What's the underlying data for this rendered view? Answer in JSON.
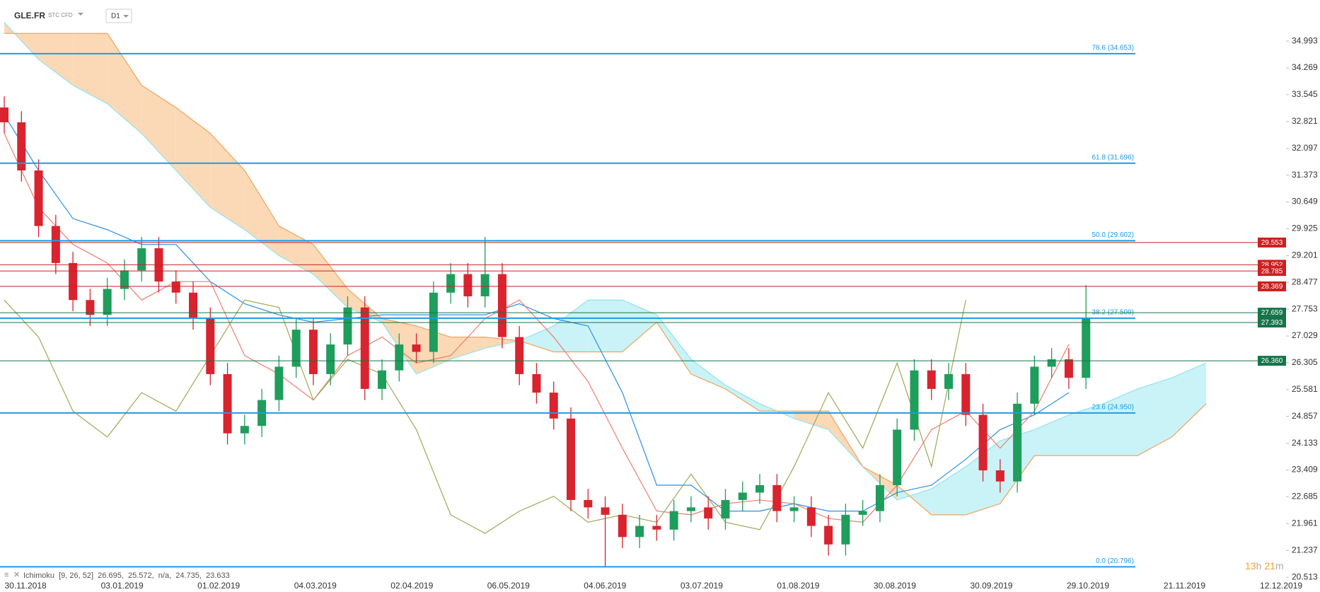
{
  "header": {
    "symbol": "GLE.FR",
    "instrument_type": "STC CFD",
    "timeframe": "D1"
  },
  "indicator_label": "Ichimoku  [9, 26, 52]  26.695,  25.572,  n/a,  24.735,  23.633",
  "countdown": {
    "hours": "13",
    "hours_unit": "h",
    "minutes": "21",
    "minutes_unit": "m"
  },
  "chart_data": {
    "type": "candlestick",
    "up_color": "#1f9d5c",
    "down_color": "#d9232e",
    "open": [
      33.2,
      32.8,
      31.5,
      30.0,
      29.0,
      28.0,
      27.6,
      28.3,
      28.8,
      29.4,
      28.5,
      28.2,
      27.5,
      26.0,
      24.4,
      24.6,
      25.3,
      26.2,
      27.2,
      26.0,
      26.8,
      27.8,
      25.6,
      26.1,
      26.8,
      26.6,
      28.2,
      28.7,
      28.1,
      28.7,
      27.0,
      26.0,
      25.5,
      24.8,
      22.6,
      22.4,
      22.2,
      21.6,
      21.9,
      21.8,
      22.3,
      22.4,
      22.1,
      22.6,
      22.8,
      23.0,
      22.3,
      22.4,
      21.9,
      21.4,
      22.2,
      22.3,
      23.0,
      24.5,
      26.1,
      25.6,
      26.0,
      24.9,
      23.4,
      23.1,
      25.2,
      26.2,
      26.4,
      25.9
    ],
    "high": [
      33.5,
      33.1,
      31.8,
      30.3,
      29.3,
      28.3,
      28.6,
      29.1,
      29.7,
      29.7,
      28.8,
      28.5,
      27.8,
      26.3,
      24.9,
      25.6,
      26.5,
      27.5,
      27.5,
      27.1,
      28.1,
      28.1,
      26.4,
      27.1,
      27.1,
      28.5,
      29.0,
      29.0,
      29.7,
      29.0,
      27.3,
      26.3,
      25.8,
      25.1,
      22.9,
      22.7,
      22.5,
      22.2,
      22.2,
      22.6,
      22.7,
      22.7,
      22.9,
      23.1,
      23.3,
      23.3,
      22.7,
      22.7,
      22.2,
      22.5,
      22.6,
      23.3,
      24.8,
      26.4,
      26.4,
      26.3,
      26.3,
      25.2,
      23.7,
      25.5,
      26.5,
      26.7,
      26.7,
      28.4
    ],
    "low": [
      32.5,
      31.2,
      29.7,
      28.7,
      27.7,
      27.3,
      27.3,
      28.0,
      28.5,
      28.2,
      27.9,
      27.2,
      25.7,
      24.1,
      24.1,
      24.3,
      25.0,
      25.9,
      25.7,
      25.7,
      26.5,
      25.3,
      25.3,
      25.8,
      26.3,
      26.3,
      27.9,
      27.8,
      27.8,
      26.7,
      25.7,
      25.2,
      24.5,
      22.3,
      22.1,
      20.8,
      21.3,
      21.3,
      21.5,
      21.5,
      22.0,
      21.8,
      21.8,
      22.3,
      22.5,
      22.0,
      22.0,
      21.6,
      21.1,
      21.1,
      21.9,
      22.0,
      22.7,
      24.2,
      25.3,
      25.3,
      24.6,
      23.1,
      22.8,
      22.8,
      24.9,
      25.9,
      25.6,
      25.6
    ],
    "close": [
      32.8,
      31.5,
      30.0,
      29.0,
      28.0,
      27.6,
      28.3,
      28.8,
      29.4,
      28.5,
      28.2,
      27.5,
      26.0,
      24.4,
      24.6,
      25.3,
      26.2,
      27.2,
      26.0,
      26.8,
      27.8,
      25.6,
      26.1,
      26.8,
      26.6,
      28.2,
      28.7,
      28.1,
      28.7,
      27.0,
      26.0,
      25.5,
      24.8,
      22.6,
      22.4,
      22.2,
      21.6,
      21.9,
      21.8,
      22.3,
      22.4,
      22.1,
      22.6,
      22.8,
      23.0,
      22.3,
      22.4,
      21.9,
      21.4,
      22.2,
      22.3,
      23.0,
      24.5,
      26.1,
      25.6,
      26.0,
      24.9,
      23.4,
      23.1,
      25.2,
      26.2,
      26.4,
      25.9,
      27.5
    ],
    "ichimoku": {
      "span_a": {
        "color": "#8fe3ee",
        "values": [
          35.5,
          34.5,
          33.8,
          33.3,
          32.5,
          31.5,
          30.5,
          29.9,
          29.2,
          28.7,
          27.8,
          27.4,
          26.0,
          26.4,
          26.7,
          26.9,
          27.3,
          28.0,
          28.0,
          27.6,
          26.4,
          25.7,
          25.2,
          24.8,
          24.5,
          23.5,
          22.6,
          22.9,
          23.5,
          24.2,
          24.5,
          24.9,
          25.2,
          25.6,
          25.9,
          26.3
        ]
      },
      "span_b": {
        "color": "#f2a35a",
        "values": [
          35.2,
          35.2,
          35.2,
          35.2,
          33.8,
          33.2,
          32.5,
          31.5,
          30.0,
          29.5,
          28.3,
          27.5,
          27.3,
          27.0,
          27.0,
          26.9,
          26.6,
          26.6,
          26.6,
          27.4,
          26.0,
          25.6,
          25.0,
          25.0,
          25.0,
          23.5,
          23.0,
          22.2,
          22.2,
          22.5,
          23.8,
          23.8,
          23.8,
          23.8,
          24.3,
          25.2
        ]
      },
      "kijun": {
        "color": "#2b8fe6",
        "values": [
          33.0,
          31.5,
          30.2,
          29.9,
          29.5,
          29.5,
          28.5,
          27.9,
          27.6,
          27.4,
          27.5,
          27.6,
          27.6,
          27.6,
          27.6,
          27.9,
          27.5,
          27.3,
          25.5,
          23.0,
          23.0,
          22.3,
          22.3,
          22.5,
          22.3,
          22.3,
          22.8,
          23.0,
          23.7,
          24.5,
          24.9,
          25.5,
          null,
          null,
          null,
          null
        ]
      },
      "tenkan": {
        "color": "#ef7b6b",
        "values": [
          32.5,
          30.5,
          29.5,
          29.0,
          28.0,
          28.5,
          28.5,
          26.5,
          26.0,
          25.3,
          26.5,
          27.0,
          26.3,
          26.5,
          27.5,
          28.0,
          27.0,
          25.8,
          24.0,
          22.3,
          22.2,
          22.5,
          22.6,
          22.5,
          22.1,
          22.0,
          23.0,
          24.5,
          25.0,
          24.0,
          25.0,
          26.8,
          null,
          null,
          null,
          null
        ]
      },
      "chikou": {
        "color": "#9aab55",
        "values": [
          28.0,
          27.0,
          25.0,
          24.3,
          25.5,
          25.0,
          26.5,
          28.0,
          27.8,
          25.3,
          26.4,
          26.0,
          24.5,
          22.2,
          21.7,
          22.3,
          22.7,
          22.0,
          22.2,
          22.0,
          23.3,
          22.0,
          21.8,
          23.5,
          25.5,
          24.0,
          26.3,
          23.5,
          28.0,
          null,
          null,
          null,
          null,
          null,
          null,
          null
        ]
      },
      "cloud_up_color": "#c9f3f7",
      "cloud_down_color": "#fbd9b6"
    },
    "fib_color": "#1e9be6",
    "fib_levels": [
      {
        "value": 34.653,
        "label": "78.6 (34.653)"
      },
      {
        "value": 31.696,
        "label": "61.8 (31.696)"
      },
      {
        "value": 29.602,
        "label": "50.0 (29.602)"
      },
      {
        "value": 27.509,
        "label": "38.2 (27.509)"
      },
      {
        "value": 24.95,
        "label": "23.6 (24.950)"
      },
      {
        "value": 20.796,
        "label": "0.0 (20.796)"
      }
    ],
    "price_lines": [
      {
        "value": 29.553,
        "label": "29.553",
        "color": "#cc1f1f"
      },
      {
        "value": 28.952,
        "label": "28.952",
        "color": "#cc1f1f"
      },
      {
        "value": 28.785,
        "label": "28.785",
        "color": "#cc1f1f"
      },
      {
        "value": 28.369,
        "label": "28.369",
        "color": "#cc1f1f"
      },
      {
        "value": 27.659,
        "label": "27.659",
        "color": "#17744a"
      },
      {
        "value": 27.393,
        "label": "27.393",
        "color": "#17744a"
      },
      {
        "value": 26.36,
        "label": "26.360",
        "color": "#17744a"
      }
    ],
    "ylim": [
      20.44,
      35.53
    ],
    "yticks": [
      34.993,
      34.269,
      33.545,
      32.821,
      32.097,
      31.373,
      30.649,
      29.925,
      29.201,
      28.477,
      27.753,
      27.029,
      26.305,
      25.581,
      24.857,
      24.133,
      23.409,
      22.685,
      21.961,
      21.237,
      20.513
    ],
    "xticks": [
      "30.11.2018",
      "03.01.2019",
      "01.02.2019",
      "04.03.2019",
      "02.04.2019",
      "06.05.2019",
      "04.06.2019",
      "03.07.2019",
      "01.08.2019",
      "30.08.2019",
      "30.09.2019",
      "29.10.2019",
      "21.11.2019",
      "12.12.2019"
    ]
  }
}
